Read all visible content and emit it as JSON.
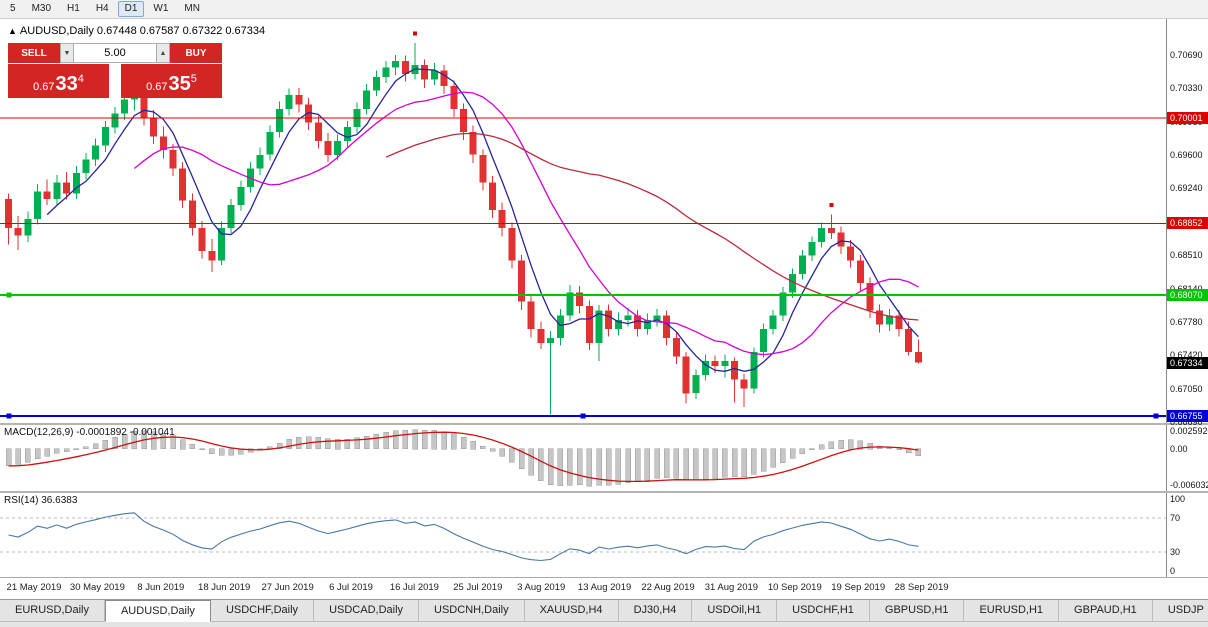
{
  "toolbar": {
    "active": "D1",
    "timeframes": [
      {
        "label": "5"
      },
      {
        "label": "M30"
      },
      {
        "label": "H1"
      },
      {
        "label": "H4"
      },
      {
        "label": "D1"
      },
      {
        "label": "W1"
      },
      {
        "label": "MN"
      }
    ]
  },
  "chart_header": {
    "display": "AUDUSD,Daily  0.67448 0.67587 0.67322 0.67334",
    "symbol": "AUDUSD,Daily",
    "open": "0.67448",
    "high": "0.67587",
    "low": "0.67322",
    "close": "0.67334"
  },
  "one_click": {
    "sell_label": "SELL",
    "buy_label": "BUY",
    "volume": "5.00",
    "sell_price": {
      "prefix": "0.67",
      "big": "33",
      "sup": "4"
    },
    "buy_price": {
      "prefix": "0.67",
      "big": "35",
      "sup": "5"
    }
  },
  "chart_data": {
    "type": "candlestick",
    "symbol": "AUDUSD",
    "timeframe": "Daily",
    "ylim": [
      0.66676,
      0.7108
    ],
    "y_ticks": [
      "0.70690",
      "0.70330",
      "0.69960",
      "0.69600",
      "0.69240",
      "0.68880",
      "0.68510",
      "0.68140",
      "0.67780",
      "0.67420",
      "0.67050",
      "0.66690"
    ],
    "x_labels": [
      "21 May 2019",
      "30 May 2019",
      "8 Jun 2019",
      "18 Jun 2019",
      "27 Jun 2019",
      "6 Jul 2019",
      "16 Jul 2019",
      "25 Jul 2019",
      "3 Aug 2019",
      "13 Aug 2019",
      "22 Aug 2019",
      "31 Aug 2019",
      "10 Sep 2019",
      "19 Sep 2019",
      "28 Sep 2019"
    ],
    "colors": {
      "bull": "#00b050",
      "bear": "#e03232",
      "background": "#ffffff"
    },
    "candles": [
      [
        0.6912,
        0.6918,
        0.6862,
        0.688
      ],
      [
        0.688,
        0.6893,
        0.6856,
        0.6872
      ],
      [
        0.6872,
        0.6898,
        0.6865,
        0.689
      ],
      [
        0.689,
        0.6928,
        0.6884,
        0.692
      ],
      [
        0.692,
        0.6933,
        0.6905,
        0.6912
      ],
      [
        0.6912,
        0.6938,
        0.6906,
        0.693
      ],
      [
        0.693,
        0.6941,
        0.6911,
        0.6918
      ],
      [
        0.6918,
        0.6948,
        0.6912,
        0.694
      ],
      [
        0.694,
        0.6962,
        0.6933,
        0.6955
      ],
      [
        0.6955,
        0.6978,
        0.6948,
        0.697
      ],
      [
        0.697,
        0.6997,
        0.6963,
        0.699
      ],
      [
        0.699,
        0.7012,
        0.6983,
        0.7005
      ],
      [
        0.7005,
        0.7028,
        0.6998,
        0.702
      ],
      [
        0.702,
        0.7037,
        0.7008,
        0.7028
      ],
      [
        0.7028,
        0.7035,
        0.6992,
        0.7
      ],
      [
        0.7,
        0.7009,
        0.6972,
        0.698
      ],
      [
        0.698,
        0.6991,
        0.6956,
        0.6965
      ],
      [
        0.6965,
        0.6972,
        0.6937,
        0.6945
      ],
      [
        0.6945,
        0.6952,
        0.6902,
        0.691
      ],
      [
        0.691,
        0.6918,
        0.6872,
        0.688
      ],
      [
        0.688,
        0.6888,
        0.6847,
        0.6855
      ],
      [
        0.6855,
        0.6868,
        0.6832,
        0.6845
      ],
      [
        0.6845,
        0.6887,
        0.684,
        0.688
      ],
      [
        0.688,
        0.6912,
        0.6874,
        0.6905
      ],
      [
        0.6905,
        0.6932,
        0.6899,
        0.6925
      ],
      [
        0.6925,
        0.6952,
        0.6919,
        0.6945
      ],
      [
        0.6945,
        0.6968,
        0.6938,
        0.696
      ],
      [
        0.696,
        0.6992,
        0.6954,
        0.6985
      ],
      [
        0.6985,
        0.7018,
        0.6979,
        0.701
      ],
      [
        0.701,
        0.7032,
        0.7003,
        0.7025
      ],
      [
        0.7025,
        0.7033,
        0.7006,
        0.7015
      ],
      [
        0.7015,
        0.7022,
        0.6987,
        0.6995
      ],
      [
        0.6995,
        0.7002,
        0.6967,
        0.6975
      ],
      [
        0.6975,
        0.6984,
        0.6952,
        0.696
      ],
      [
        0.696,
        0.6982,
        0.6954,
        0.6975
      ],
      [
        0.6975,
        0.6997,
        0.6968,
        0.699
      ],
      [
        0.699,
        0.7017,
        0.6984,
        0.701
      ],
      [
        0.701,
        0.7037,
        0.7004,
        0.703
      ],
      [
        0.703,
        0.7052,
        0.7024,
        0.7045
      ],
      [
        0.7045,
        0.7062,
        0.7038,
        0.7055
      ],
      [
        0.7055,
        0.7069,
        0.7047,
        0.7062
      ],
      [
        0.7062,
        0.7068,
        0.704,
        0.7048
      ],
      [
        0.7048,
        0.7082,
        0.7042,
        0.7058
      ],
      [
        0.7058,
        0.7064,
        0.7033,
        0.7042
      ],
      [
        0.7042,
        0.706,
        0.7036,
        0.7052
      ],
      [
        0.7052,
        0.7058,
        0.7026,
        0.7035
      ],
      [
        0.7035,
        0.7041,
        0.7001,
        0.701
      ],
      [
        0.701,
        0.7016,
        0.6976,
        0.6985
      ],
      [
        0.6985,
        0.6992,
        0.6951,
        0.696
      ],
      [
        0.696,
        0.6966,
        0.6921,
        0.693
      ],
      [
        0.693,
        0.6937,
        0.6891,
        0.69
      ],
      [
        0.69,
        0.6908,
        0.6871,
        0.688
      ],
      [
        0.688,
        0.6886,
        0.6836,
        0.6845
      ],
      [
        0.6845,
        0.6851,
        0.6791,
        0.68
      ],
      [
        0.68,
        0.6807,
        0.6761,
        0.677
      ],
      [
        0.677,
        0.6778,
        0.6748,
        0.6755
      ],
      [
        0.6755,
        0.6768,
        0.6677,
        0.676
      ],
      [
        0.676,
        0.6792,
        0.6752,
        0.6785
      ],
      [
        0.6785,
        0.6818,
        0.6779,
        0.681
      ],
      [
        0.681,
        0.6817,
        0.6787,
        0.6795
      ],
      [
        0.6795,
        0.6801,
        0.6747,
        0.6755
      ],
      [
        0.6755,
        0.6796,
        0.6735,
        0.679
      ],
      [
        0.679,
        0.6797,
        0.6762,
        0.677
      ],
      [
        0.677,
        0.6788,
        0.6763,
        0.678
      ],
      [
        0.678,
        0.6793,
        0.6773,
        0.6785
      ],
      [
        0.6785,
        0.6791,
        0.6762,
        0.677
      ],
      [
        0.677,
        0.6787,
        0.6764,
        0.678
      ],
      [
        0.678,
        0.6792,
        0.6773,
        0.6785
      ],
      [
        0.6785,
        0.679,
        0.6752,
        0.676
      ],
      [
        0.676,
        0.6766,
        0.6732,
        0.674
      ],
      [
        0.674,
        0.6745,
        0.6689,
        0.67
      ],
      [
        0.67,
        0.6726,
        0.6694,
        0.672
      ],
      [
        0.672,
        0.6742,
        0.6714,
        0.6735
      ],
      [
        0.6735,
        0.6741,
        0.6722,
        0.673
      ],
      [
        0.673,
        0.6742,
        0.6717,
        0.6735
      ],
      [
        0.6735,
        0.6739,
        0.669,
        0.6715
      ],
      [
        0.6715,
        0.6721,
        0.6685,
        0.6705
      ],
      [
        0.6705,
        0.675,
        0.67,
        0.6745
      ],
      [
        0.6745,
        0.6776,
        0.6739,
        0.677
      ],
      [
        0.677,
        0.6791,
        0.6764,
        0.6785
      ],
      [
        0.6785,
        0.6816,
        0.6779,
        0.681
      ],
      [
        0.681,
        0.6836,
        0.6804,
        0.683
      ],
      [
        0.683,
        0.6856,
        0.6824,
        0.685
      ],
      [
        0.685,
        0.6871,
        0.6844,
        0.6865
      ],
      [
        0.6865,
        0.6886,
        0.6859,
        0.688
      ],
      [
        0.688,
        0.6895,
        0.6868,
        0.6875
      ],
      [
        0.6875,
        0.6882,
        0.6852,
        0.686
      ],
      [
        0.686,
        0.6867,
        0.6837,
        0.6845
      ],
      [
        0.6845,
        0.6851,
        0.6812,
        0.682
      ],
      [
        0.682,
        0.6826,
        0.6782,
        0.679
      ],
      [
        0.679,
        0.6797,
        0.6766,
        0.6775
      ],
      [
        0.6775,
        0.6792,
        0.6768,
        0.6785
      ],
      [
        0.6785,
        0.6791,
        0.6762,
        0.677
      ],
      [
        0.677,
        0.6778,
        0.6741,
        0.67448
      ],
      [
        0.67448,
        0.67587,
        0.67322,
        0.67334
      ]
    ],
    "overlays": [
      {
        "name": "ma-fast-line",
        "type": "sma",
        "period": 5,
        "color": "#26269b"
      },
      {
        "name": "ma-medium-line",
        "type": "sma",
        "period": 14,
        "color": "#d400d4"
      },
      {
        "name": "ma-slow-line",
        "type": "sma",
        "period": 40,
        "color": "#bb2a3c"
      }
    ],
    "hlines": [
      {
        "price": 0.70001,
        "label": "0.70001",
        "color": "#dd0000",
        "width": 1,
        "handles": []
      },
      {
        "price": 0.68852,
        "label": "0.68852",
        "color": "#dd0000",
        "width": 1,
        "handles": []
      },
      {
        "price": 0.6807,
        "label": "0.68070",
        "color": "#00c400",
        "width": 2,
        "handles": [
          "left"
        ]
      },
      {
        "price": 0.66755,
        "label": "0.66755",
        "color": "#0000d8",
        "width": 2,
        "handles": [
          "left",
          "center",
          "right"
        ]
      }
    ],
    "markers": [
      {
        "index": 42,
        "price": 0.7092,
        "color": "#dd0000"
      },
      {
        "index": 85,
        "price": 0.6905,
        "color": "#dd0000"
      }
    ],
    "current_price": {
      "value": 0.67334,
      "label": "0.67334",
      "bg": "#000000",
      "fg": "#ffffff"
    }
  },
  "macd_panel": {
    "title": "MACD(12,26,9) -0.0001892 -0.001041",
    "params": [
      12,
      26,
      9
    ],
    "histogram_value": "-0.0001892",
    "signal_value": "-0.001041",
    "axis_labels": {
      "max": "0.0025920",
      "zero": "0.00",
      "min": "-0.0060320"
    },
    "histogram_color": "#c6c6c6",
    "histogram_border": "#9a9a9a",
    "signal_color": "#cc1111"
  },
  "rsi_panel": {
    "title": "RSI(14) 36.6383",
    "period": 14,
    "value": 36.6383,
    "levels": [
      70,
      30
    ],
    "axis_labels": [
      "100",
      "70",
      "30",
      "0"
    ],
    "line_color": "#4a76a8"
  },
  "tabs": {
    "active_index": 1,
    "items": [
      "EURUSD,Daily",
      "AUDUSD,Daily",
      "USDCHF,Daily",
      "USDCAD,Daily",
      "USDCNH,Daily",
      "XAUUSD,H4",
      "DJ30,H4",
      "USDOil,H1",
      "USDCHF,H1",
      "GBPUSD,H1",
      "EURUSD,H1",
      "GBPAUD,H1",
      "USDJP"
    ]
  }
}
